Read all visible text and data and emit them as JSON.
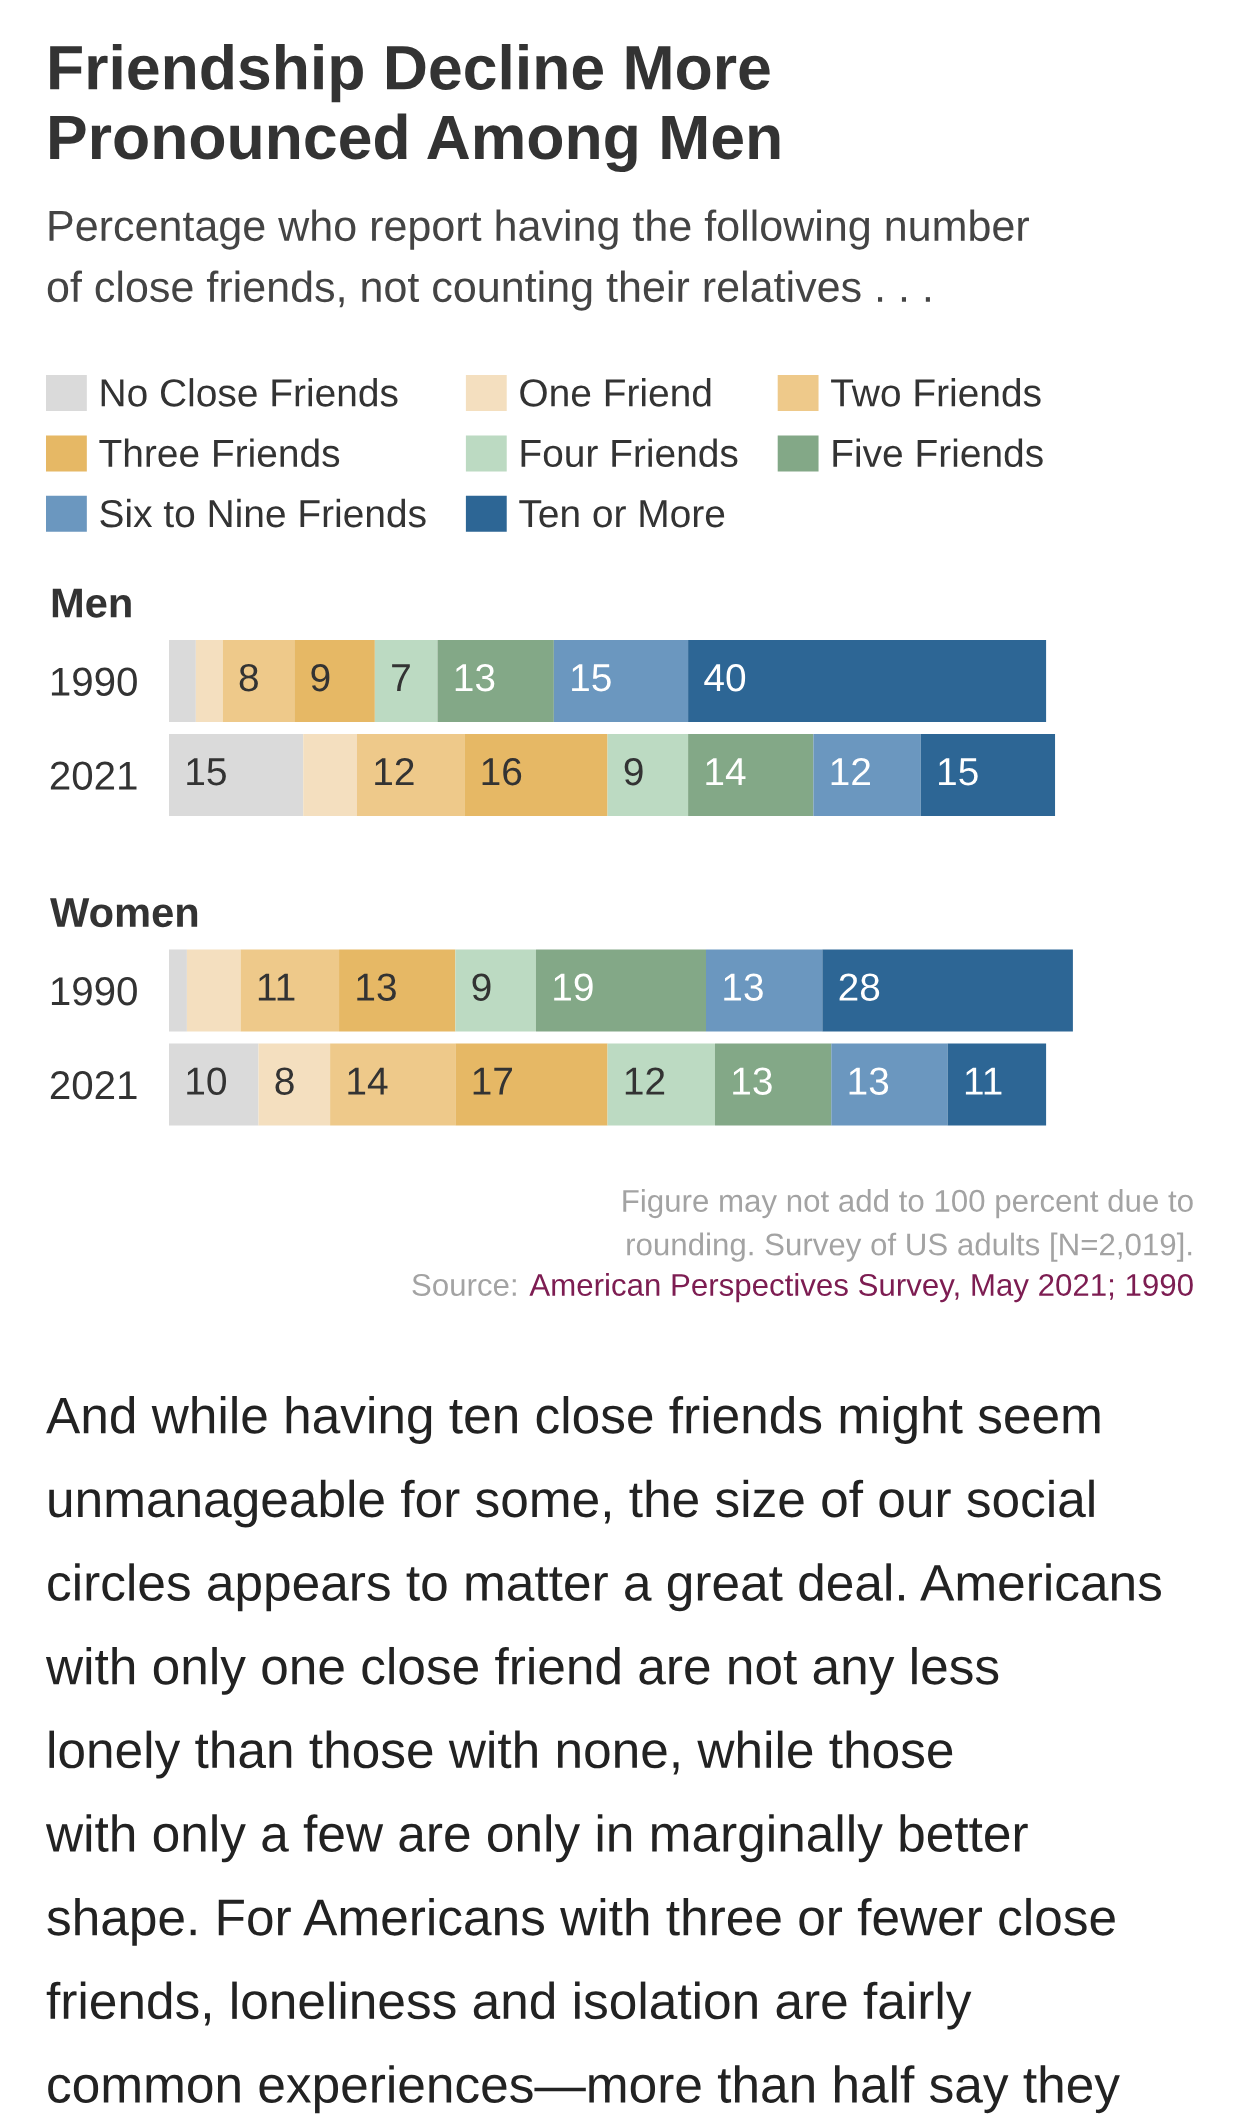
{
  "chart_data": [
    {
      "type": "other",
      "title": "Friendship Decline More\nPronounced Among Men",
      "subtitle": "Percentage who report having the following number\nof close friends, not counting their relatives . . ."
    },
    {
      "type": "bar",
      "title": "Men",
      "categories": [
        "1990",
        "2021"
      ],
      "orientation": "horizontal",
      "stacked": true,
      "tick_labels": "y",
      "legend": "top",
      "series": [
        {
          "name": "No Close Friends",
          "color": "#dadada",
          "values": [
            3,
            15
          ],
          "value_labels": [
            null,
            "15"
          ]
        },
        {
          "name": "One Friend",
          "color": "#f4dfbf",
          "values": [
            3,
            6
          ],
          "value_labels": [
            null,
            null
          ]
        },
        {
          "name": "Two Friends",
          "color": "#eec98a",
          "values": [
            8,
            12
          ],
          "value_labels": [
            "8",
            "12"
          ]
        },
        {
          "name": "Three Friends",
          "color": "#e6b865",
          "values": [
            9,
            16
          ],
          "value_labels": [
            "9",
            "16"
          ]
        },
        {
          "name": "Four Friends",
          "color": "#bcdac2",
          "values": [
            7,
            9
          ],
          "value_labels": [
            "7",
            "9"
          ]
        },
        {
          "name": "Five Friends",
          "color": "#83a887",
          "values": [
            13,
            14
          ],
          "value_labels": [
            "13",
            "14"
          ]
        },
        {
          "name": "Six to Nine Friends",
          "color": "#6b97bf",
          "values": [
            15,
            12
          ],
          "value_labels": [
            "15",
            "12"
          ]
        },
        {
          "name": "Ten or More",
          "color": "#2d6695",
          "values": [
            40,
            15
          ],
          "value_labels": [
            "40",
            "15"
          ]
        }
      ]
    },
    {
      "type": "bar",
      "title": "Women",
      "categories": [
        "1990",
        "2021"
      ],
      "orientation": "horizontal",
      "stacked": true,
      "tick_labels": "y",
      "series": [
        {
          "color": "#dadada",
          "values": [
            2,
            10
          ],
          "value_labels": [
            null,
            "10"
          ]
        },
        {
          "color": "#f4dfbf",
          "values": [
            6,
            8
          ],
          "value_labels": [
            null,
            "8"
          ]
        },
        {
          "color": "#eec98a",
          "values": [
            11,
            14
          ],
          "value_labels": [
            "11",
            "14"
          ]
        },
        {
          "color": "#e6b865",
          "values": [
            13,
            17
          ],
          "value_labels": [
            "13",
            "17"
          ]
        },
        {
          "color": "#bcdac2",
          "values": [
            9,
            12
          ],
          "value_labels": [
            "9",
            "12"
          ]
        },
        {
          "color": "#83a887",
          "values": [
            19,
            13
          ],
          "value_labels": [
            "19",
            "13"
          ]
        },
        {
          "color": "#6b97bf",
          "values": [
            13,
            13
          ],
          "value_labels": [
            "13",
            "13"
          ]
        },
        {
          "color": "#2d6695",
          "values": [
            28,
            11
          ],
          "value_labels": [
            "28",
            "11"
          ]
        }
      ],
      "annotations": [
        "Figure may not add to 100 percent due to\nrounding. Survey of US adults [N=2,019].",
        "Source:",
        "American Perspectives Survey, May 2021; 1990"
      ]
    },
    {
      "type": "other",
      "annotations": [
        "And while having ten close friends might seem\nunmanageable for some, the size of our social\ncircles appears to matter a great deal. Americans\nwith only one close friend are not any less\nlonely than those with none, while those\nwith only a few are only in marginally better\nshape. For Americans with three or fewer close\nfriends, loneliness and isolation are fairly\ncommon experiences—more than half say they"
      ]
    }
  ]
}
